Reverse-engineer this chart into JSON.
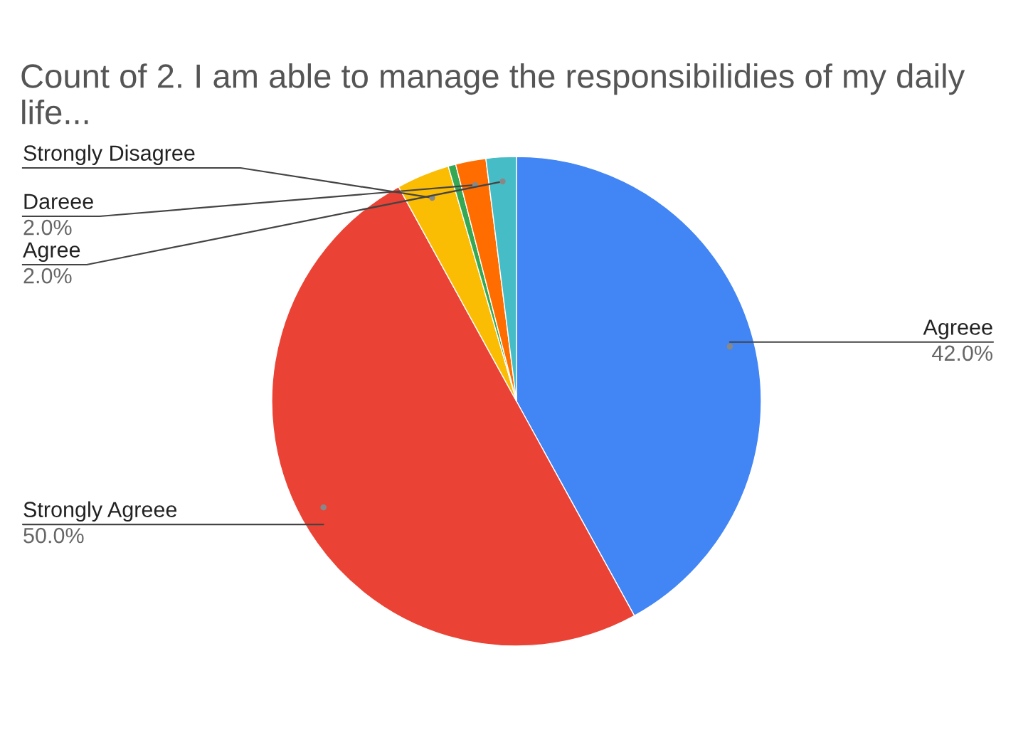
{
  "chart_data": {
    "type": "pie",
    "title": "Count of 2. I am able to manage the responsibilidies of my daily life...",
    "categories": [
      "Agreee",
      "Strongly Agreee",
      "Strongly Disagree",
      null,
      "Dareee",
      "Agree"
    ],
    "values": [
      42,
      50,
      3.5,
      0.5,
      2,
      2
    ],
    "value_labels": [
      "42.0%",
      "50.0%",
      null,
      null,
      "2.0%",
      "2.0%"
    ],
    "colors": [
      "#4285f4",
      "#ea4335",
      "#fbbc04",
      "#34a853",
      "#ff6d01",
      "#46bdc6"
    ]
  }
}
